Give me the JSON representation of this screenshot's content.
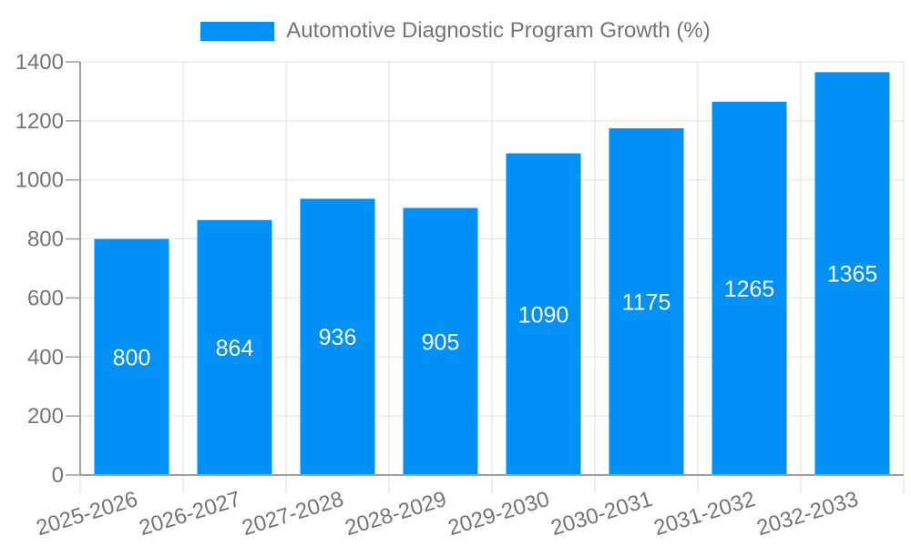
{
  "chart_data": {
    "type": "bar",
    "title": "Automotive Diagnostic Program Growth (%)",
    "categories": [
      "2025-2026",
      "2026-2027",
      "2027-2028",
      "2028-2029",
      "2029-2030",
      "2030-2031",
      "2031-2032",
      "2032-2033"
    ],
    "values": [
      800,
      864,
      936,
      905,
      1090,
      1175,
      1265,
      1365
    ],
    "xlabel": "",
    "ylabel": "",
    "ylim": [
      0,
      1400
    ],
    "yticks": [
      0,
      200,
      400,
      600,
      800,
      1000,
      1200,
      1400
    ],
    "grid": true,
    "legend_position": "top-center",
    "x_label_rotation_deg": -17,
    "colors": {
      "bar": "#0190f5",
      "value_label": "#ffffff",
      "axis": "#9e9e9e",
      "grid": "#e2e2e2",
      "x_tick": "#dcdcdc",
      "tick_label": "#757575",
      "legend_text": "#757575",
      "background": "#ffffff"
    }
  }
}
